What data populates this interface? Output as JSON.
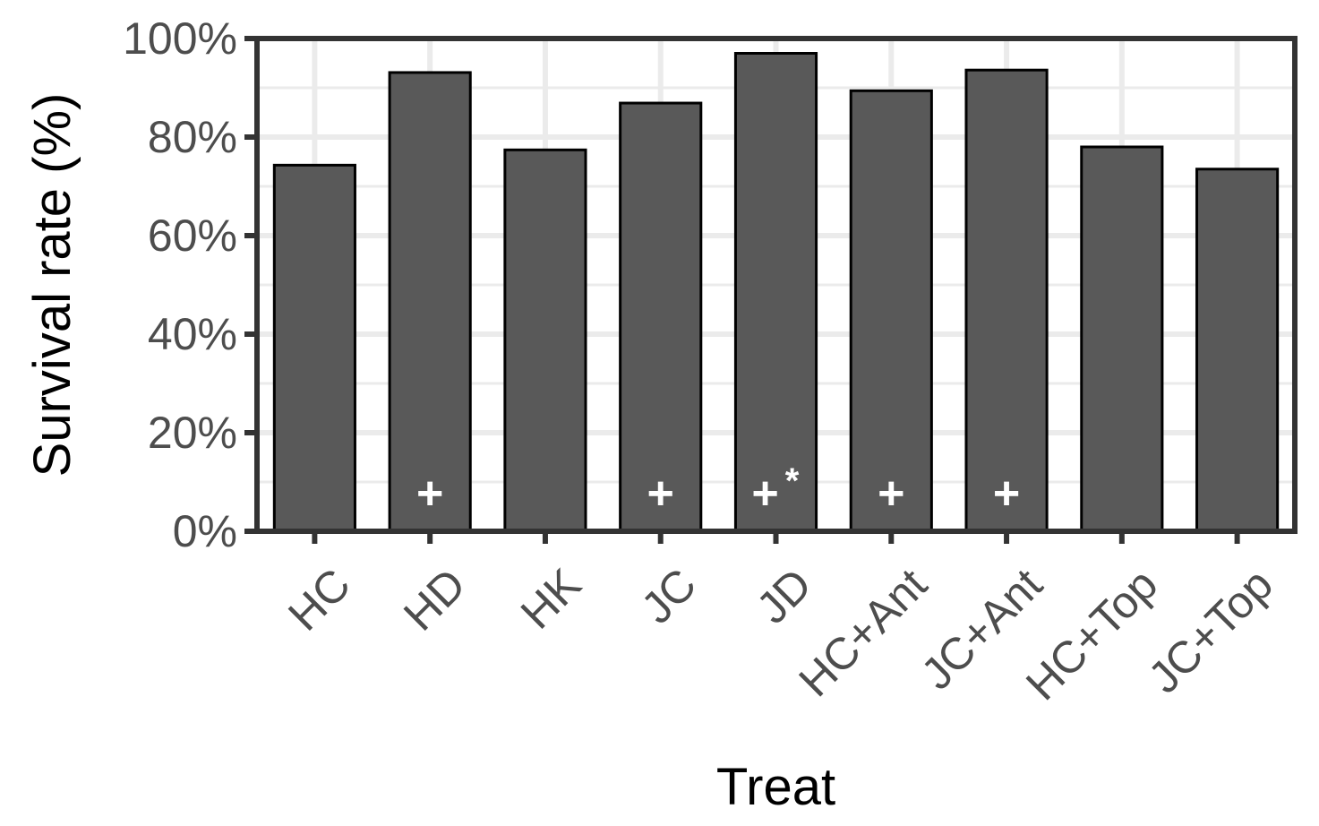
{
  "chart_data": {
    "type": "bar",
    "categories": [
      "HC",
      "HD",
      "HK",
      "JC",
      "JD",
      "HC+Ant",
      "JC+Ant",
      "HC+Top",
      "JC+Top"
    ],
    "values": [
      74.3,
      93.1,
      77.4,
      86.9,
      97.0,
      89.4,
      93.6,
      78.0,
      73.5
    ],
    "annotations": [
      "",
      "+",
      "",
      "+",
      "+*",
      "+",
      "+",
      "",
      ""
    ],
    "xlabel": "Treat",
    "ylabel": "Survival rate (%)",
    "ylim": [
      0,
      100
    ],
    "yticks": [
      0,
      20,
      40,
      60,
      80,
      100
    ],
    "ytick_labels": [
      "0%",
      "20%",
      "40%",
      "60%",
      "80%",
      "100%"
    ],
    "grid": true,
    "legend": "none",
    "colors": {
      "bar_fill": "#595959",
      "bar_stroke": "#000000",
      "grid": "#ebebeb",
      "panel_border": "#333333",
      "tick_text": "#4d4d4d",
      "annotation": "#ffffff"
    }
  }
}
